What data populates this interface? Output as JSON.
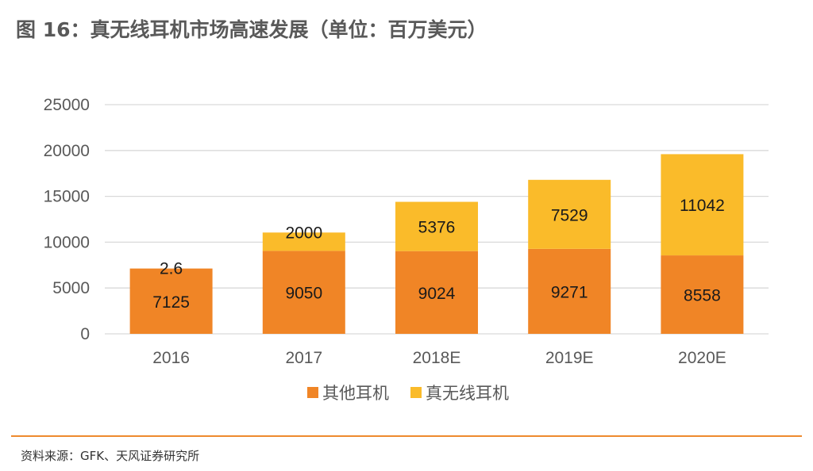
{
  "title": "图 16：真无线耳机市场高速发展（单位：百万美元）",
  "source": "资料来源：GFK、天风证券研究所",
  "colors": {
    "其他耳机": "#f08526",
    "真无线耳机": "#fabb2a",
    "grid": "#d9d9d9",
    "rule": "#ee8a2e"
  },
  "chart_data": {
    "type": "bar",
    "stacked": true,
    "categories": [
      "2016",
      "2017",
      "2018E",
      "2019E",
      "2020E"
    ],
    "series": [
      {
        "name": "其他耳机",
        "values": [
          7125,
          9050,
          9024,
          9271,
          8558
        ],
        "labels": [
          "7125",
          "9050",
          "9024",
          "9271",
          "8558"
        ]
      },
      {
        "name": "真无线耳机",
        "values": [
          2.6,
          2000,
          5376,
          7529,
          11042
        ],
        "labels": [
          "2.6",
          "2000",
          "5376",
          "7529",
          "11042"
        ]
      }
    ],
    "ylim": [
      0,
      25000
    ],
    "yticks": [
      "0",
      "5000",
      "10000",
      "15000",
      "20000",
      "25000"
    ],
    "grid": true,
    "legend_position": "bottom"
  }
}
